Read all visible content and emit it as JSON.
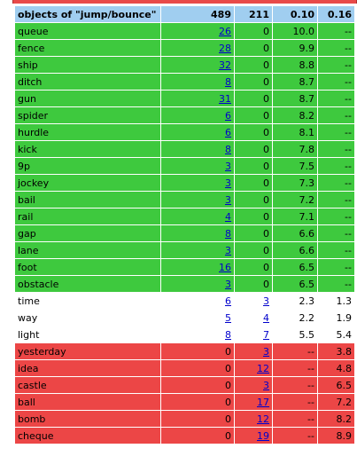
{
  "header": {
    "title": "objects of \"jump/bounce\"",
    "col1": "489",
    "col2": "211",
    "col3": "0.10",
    "col4": "0.16"
  },
  "colors": {
    "header_bg": "#a0cef0",
    "green": "#3ec93e",
    "white": "#ffffff",
    "red": "#ec4646",
    "link": "#0000cc"
  },
  "rows": [
    {
      "word": "queue",
      "c1": "26",
      "c1_link": true,
      "c2": "0",
      "c2_link": false,
      "c3": "10.0",
      "c4": "--",
      "group": "green"
    },
    {
      "word": "fence",
      "c1": "28",
      "c1_link": true,
      "c2": "0",
      "c2_link": false,
      "c3": "9.9",
      "c4": "--",
      "group": "green"
    },
    {
      "word": "ship",
      "c1": "32",
      "c1_link": true,
      "c2": "0",
      "c2_link": false,
      "c3": "8.8",
      "c4": "--",
      "group": "green"
    },
    {
      "word": "ditch",
      "c1": "8",
      "c1_link": true,
      "c2": "0",
      "c2_link": false,
      "c3": "8.7",
      "c4": "--",
      "group": "green"
    },
    {
      "word": "gun",
      "c1": "31",
      "c1_link": true,
      "c2": "0",
      "c2_link": false,
      "c3": "8.7",
      "c4": "--",
      "group": "green"
    },
    {
      "word": "spider",
      "c1": "6",
      "c1_link": true,
      "c2": "0",
      "c2_link": false,
      "c3": "8.2",
      "c4": "--",
      "group": "green"
    },
    {
      "word": "hurdle",
      "c1": "6",
      "c1_link": true,
      "c2": "0",
      "c2_link": false,
      "c3": "8.1",
      "c4": "--",
      "group": "green"
    },
    {
      "word": "kick",
      "c1": "8",
      "c1_link": true,
      "c2": "0",
      "c2_link": false,
      "c3": "7.8",
      "c4": "--",
      "group": "green"
    },
    {
      "word": "9p",
      "c1": "3",
      "c1_link": true,
      "c2": "0",
      "c2_link": false,
      "c3": "7.5",
      "c4": "--",
      "group": "green"
    },
    {
      "word": "jockey",
      "c1": "3",
      "c1_link": true,
      "c2": "0",
      "c2_link": false,
      "c3": "7.3",
      "c4": "--",
      "group": "green"
    },
    {
      "word": "bail",
      "c1": "3",
      "c1_link": true,
      "c2": "0",
      "c2_link": false,
      "c3": "7.2",
      "c4": "--",
      "group": "green"
    },
    {
      "word": "rail",
      "c1": "4",
      "c1_link": true,
      "c2": "0",
      "c2_link": false,
      "c3": "7.1",
      "c4": "--",
      "group": "green"
    },
    {
      "word": "gap",
      "c1": "8",
      "c1_link": true,
      "c2": "0",
      "c2_link": false,
      "c3": "6.6",
      "c4": "--",
      "group": "green"
    },
    {
      "word": "lane",
      "c1": "3",
      "c1_link": true,
      "c2": "0",
      "c2_link": false,
      "c3": "6.6",
      "c4": "--",
      "group": "green"
    },
    {
      "word": "foot",
      "c1": "16",
      "c1_link": true,
      "c2": "0",
      "c2_link": false,
      "c3": "6.5",
      "c4": "--",
      "group": "green"
    },
    {
      "word": "obstacle",
      "c1": "3",
      "c1_link": true,
      "c2": "0",
      "c2_link": false,
      "c3": "6.5",
      "c4": "--",
      "group": "green"
    },
    {
      "word": "time",
      "c1": "6",
      "c1_link": true,
      "c2": "3",
      "c2_link": true,
      "c3": "2.3",
      "c4": "1.3",
      "group": "white"
    },
    {
      "word": "way",
      "c1": "5",
      "c1_link": true,
      "c2": "4",
      "c2_link": true,
      "c3": "2.2",
      "c4": "1.9",
      "group": "white"
    },
    {
      "word": "light",
      "c1": "8",
      "c1_link": true,
      "c2": "7",
      "c2_link": true,
      "c3": "5.5",
      "c4": "5.4",
      "group": "white"
    },
    {
      "word": "yesterday",
      "c1": "0",
      "c1_link": false,
      "c2": "3",
      "c2_link": true,
      "c3": "--",
      "c4": "3.8",
      "group": "red"
    },
    {
      "word": "idea",
      "c1": "0",
      "c1_link": false,
      "c2": "12",
      "c2_link": true,
      "c3": "--",
      "c4": "4.8",
      "group": "red"
    },
    {
      "word": "castle",
      "c1": "0",
      "c1_link": false,
      "c2": "3",
      "c2_link": true,
      "c3": "--",
      "c4": "6.5",
      "group": "red"
    },
    {
      "word": "ball",
      "c1": "0",
      "c1_link": false,
      "c2": "17",
      "c2_link": true,
      "c3": "--",
      "c4": "7.2",
      "group": "red"
    },
    {
      "word": "bomb",
      "c1": "0",
      "c1_link": false,
      "c2": "12",
      "c2_link": true,
      "c3": "--",
      "c4": "8.2",
      "group": "red"
    },
    {
      "word": "cheque",
      "c1": "0",
      "c1_link": false,
      "c2": "19",
      "c2_link": true,
      "c3": "--",
      "c4": "8.9",
      "group": "red"
    }
  ]
}
